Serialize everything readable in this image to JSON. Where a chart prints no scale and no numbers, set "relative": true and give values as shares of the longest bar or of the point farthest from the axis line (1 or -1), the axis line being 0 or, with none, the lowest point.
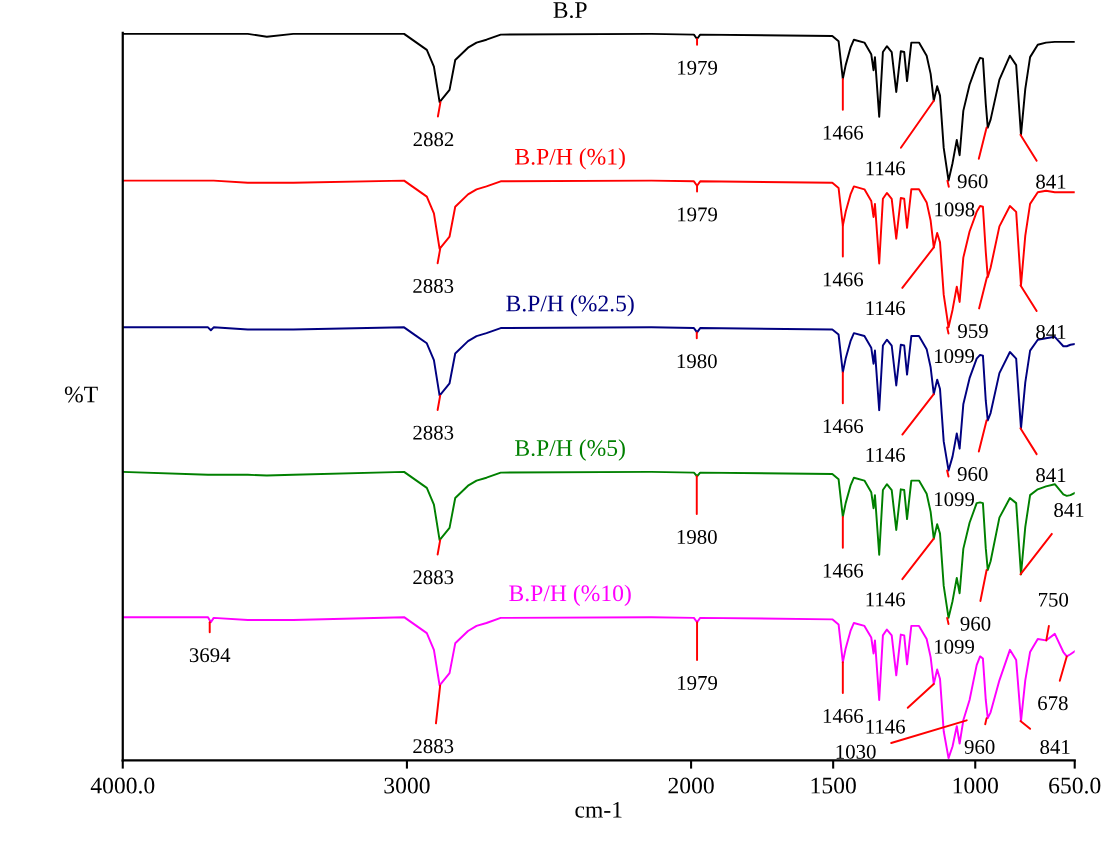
{
  "chart_data": {
    "type": "line",
    "relative": true,
    "xlabel": "cm-1",
    "ylabel": "%T",
    "xlim": [
      4000,
      650
    ],
    "xticks": [
      {
        "value": 4000,
        "label": "4000.0"
      },
      3000,
      2000,
      1500,
      1000,
      {
        "value": 650,
        "label": "650.0"
      }
    ],
    "x": [
      4000,
      3700,
      3690,
      3680,
      3560,
      3493,
      3400,
      3010,
      2970,
      2930,
      2905,
      2885,
      2850,
      2830,
      2785,
      2755,
      2720,
      2670,
      2140,
      1990,
      1979,
      1968,
      1503,
      1481,
      1466,
      1456,
      1439,
      1427,
      1390,
      1366,
      1358,
      1353,
      1338,
      1325,
      1311,
      1294,
      1278,
      1262,
      1250,
      1240,
      1225,
      1198,
      1171,
      1157,
      1146,
      1134,
      1124,
      1111,
      1094,
      1080,
      1065,
      1055,
      1042,
      1020,
      995,
      983,
      973,
      963,
      956,
      946,
      915,
      878,
      856,
      839,
      824,
      807,
      780,
      751,
      720,
      690,
      678,
      665,
      650
    ],
    "series": [
      {
        "name": "B.P",
        "color": "#000000",
        "values": [
          1.0,
          1.0,
          1.0,
          1.0,
          1.0,
          0.996,
          1.0,
          1.0,
          0.989,
          0.978,
          0.955,
          0.906,
          0.923,
          0.964,
          0.981,
          0.988,
          0.992,
          0.999,
          1.0,
          0.999,
          0.993,
          0.999,
          0.997,
          0.99,
          0.938,
          0.957,
          0.981,
          0.992,
          0.988,
          0.972,
          0.95,
          0.968,
          0.886,
          0.975,
          0.983,
          0.975,
          0.92,
          0.976,
          0.975,
          0.935,
          0.988,
          0.988,
          0.97,
          0.945,
          0.908,
          0.928,
          0.915,
          0.843,
          0.798,
          0.822,
          0.854,
          0.833,
          0.894,
          0.93,
          0.957,
          0.967,
          0.966,
          0.904,
          0.871,
          0.882,
          0.937,
          0.97,
          0.957,
          0.861,
          0.924,
          0.968,
          0.985,
          0.988,
          0.989,
          0.989,
          0.989,
          0.989,
          0.989
        ]
      },
      {
        "name": "B.P/H (%1)",
        "color": "#ff0000",
        "values": [
          0.798,
          0.798,
          0.798,
          0.798,
          0.795,
          0.795,
          0.795,
          0.798,
          0.787,
          0.776,
          0.753,
          0.704,
          0.721,
          0.762,
          0.779,
          0.786,
          0.79,
          0.797,
          0.798,
          0.797,
          0.791,
          0.797,
          0.795,
          0.788,
          0.736,
          0.755,
          0.779,
          0.79,
          0.786,
          0.77,
          0.748,
          0.766,
          0.684,
          0.773,
          0.781,
          0.773,
          0.718,
          0.774,
          0.773,
          0.733,
          0.786,
          0.786,
          0.768,
          0.743,
          0.706,
          0.726,
          0.713,
          0.641,
          0.596,
          0.62,
          0.652,
          0.631,
          0.692,
          0.728,
          0.755,
          0.763,
          0.762,
          0.7,
          0.665,
          0.678,
          0.735,
          0.763,
          0.755,
          0.654,
          0.722,
          0.766,
          0.782,
          0.784,
          0.782,
          0.782,
          0.782,
          0.782,
          0.782
        ]
      },
      {
        "name": "B.P/H (%2.5)",
        "color": "#000080",
        "values": [
          0.596,
          0.596,
          0.592,
          0.596,
          0.593,
          0.593,
          0.593,
          0.596,
          0.585,
          0.574,
          0.551,
          0.502,
          0.519,
          0.56,
          0.577,
          0.584,
          0.588,
          0.595,
          0.596,
          0.595,
          0.589,
          0.595,
          0.593,
          0.586,
          0.534,
          0.553,
          0.577,
          0.588,
          0.584,
          0.568,
          0.546,
          0.564,
          0.482,
          0.571,
          0.579,
          0.571,
          0.516,
          0.572,
          0.571,
          0.531,
          0.584,
          0.584,
          0.566,
          0.541,
          0.504,
          0.524,
          0.511,
          0.439,
          0.399,
          0.418,
          0.45,
          0.429,
          0.49,
          0.526,
          0.553,
          0.558,
          0.557,
          0.495,
          0.468,
          0.478,
          0.533,
          0.562,
          0.553,
          0.457,
          0.52,
          0.564,
          0.579,
          0.581,
          0.583,
          0.57,
          0.57,
          0.572,
          0.573
        ]
      },
      {
        "name": "B.P/H (%5)",
        "color": "#008000",
        "values": [
          0.397,
          0.393,
          0.393,
          0.393,
          0.393,
          0.392,
          0.393,
          0.397,
          0.386,
          0.375,
          0.352,
          0.303,
          0.32,
          0.361,
          0.378,
          0.385,
          0.389,
          0.396,
          0.397,
          0.396,
          0.391,
          0.396,
          0.394,
          0.387,
          0.335,
          0.354,
          0.378,
          0.389,
          0.385,
          0.369,
          0.347,
          0.365,
          0.283,
          0.372,
          0.38,
          0.372,
          0.317,
          0.373,
          0.372,
          0.332,
          0.385,
          0.385,
          0.367,
          0.342,
          0.305,
          0.325,
          0.312,
          0.24,
          0.196,
          0.219,
          0.251,
          0.23,
          0.291,
          0.327,
          0.354,
          0.355,
          0.354,
          0.292,
          0.262,
          0.274,
          0.334,
          0.361,
          0.354,
          0.256,
          0.321,
          0.365,
          0.373,
          0.377,
          0.38,
          0.366,
          0.364,
          0.365,
          0.368
        ]
      },
      {
        "name": "B.P/H (%10)",
        "color": "#ff00ff",
        "values": [
          0.197,
          0.197,
          0.19,
          0.196,
          0.193,
          0.193,
          0.193,
          0.197,
          0.186,
          0.175,
          0.152,
          0.103,
          0.12,
          0.161,
          0.178,
          0.185,
          0.189,
          0.196,
          0.197,
          0.196,
          0.19,
          0.196,
          0.194,
          0.187,
          0.135,
          0.154,
          0.178,
          0.189,
          0.185,
          0.169,
          0.147,
          0.165,
          0.083,
          0.172,
          0.18,
          0.172,
          0.117,
          0.173,
          0.172,
          0.132,
          0.185,
          0.185,
          0.167,
          0.142,
          0.105,
          0.125,
          0.112,
          0.04,
          0.003,
          0.019,
          0.047,
          0.023,
          0.055,
          0.083,
          0.131,
          0.143,
          0.14,
          0.083,
          0.058,
          0.066,
          0.11,
          0.152,
          0.138,
          0.054,
          0.11,
          0.149,
          0.167,
          0.165,
          0.174,
          0.149,
          0.143,
          0.146,
          0.15
        ]
      }
    ],
    "annotations": [
      {
        "text": "2882",
        "x": 2882,
        "y": 0.906
      },
      {
        "text": "1979",
        "x": 1979,
        "y": 0.993
      },
      {
        "text": "1466",
        "x": 1466,
        "y": 0.938
      },
      {
        "text": "1146",
        "x": 1146,
        "y": 0.908
      },
      {
        "text": "1098",
        "x": 1098,
        "y": 0.798
      },
      {
        "text": "960",
        "x": 960,
        "y": 0.871
      },
      {
        "text": "841",
        "x": 841,
        "y": 0.861
      },
      {
        "text": "2883",
        "x": 2883,
        "y": 0.704
      },
      {
        "text": "1979",
        "x": 1979,
        "y": 0.791
      },
      {
        "text": "1466",
        "x": 1466,
        "y": 0.736
      },
      {
        "text": "1146",
        "x": 1146,
        "y": 0.706
      },
      {
        "text": "1099",
        "x": 1099,
        "y": 0.596
      },
      {
        "text": "959",
        "x": 959,
        "y": 0.665
      },
      {
        "text": "841",
        "x": 841,
        "y": 0.654
      },
      {
        "text": "2883",
        "x": 2883,
        "y": 0.502
      },
      {
        "text": "1980",
        "x": 1980,
        "y": 0.589
      },
      {
        "text": "1466",
        "x": 1466,
        "y": 0.534
      },
      {
        "text": "1146",
        "x": 1146,
        "y": 0.504
      },
      {
        "text": "1099",
        "x": 1099,
        "y": 0.399
      },
      {
        "text": "960",
        "x": 960,
        "y": 0.468
      },
      {
        "text": "841",
        "x": 841,
        "y": 0.457
      },
      {
        "text": "2883",
        "x": 2883,
        "y": 0.303
      },
      {
        "text": "1980",
        "x": 1980,
        "y": 0.391
      },
      {
        "text": "1466",
        "x": 1466,
        "y": 0.335
      },
      {
        "text": "1146",
        "x": 1146,
        "y": 0.305
      },
      {
        "text": "1099",
        "x": 1099,
        "y": 0.196
      },
      {
        "text": "960",
        "x": 960,
        "y": 0.262
      },
      {
        "text": "841",
        "x": 841,
        "y": 0.256
      },
      {
        "text": "3694",
        "x": 3694,
        "y": 0.19
      },
      {
        "text": "2883",
        "x": 2883,
        "y": 0.103
      },
      {
        "text": "1979",
        "x": 1979,
        "y": 0.19
      },
      {
        "text": "1466",
        "x": 1466,
        "y": 0.135
      },
      {
        "text": "1146",
        "x": 1146,
        "y": 0.105
      },
      {
        "text": "1030",
        "x": 1030,
        "y": 0.055
      },
      {
        "text": "960",
        "x": 960,
        "y": 0.058
      },
      {
        "text": "841",
        "x": 841,
        "y": 0.054
      },
      {
        "text": "750",
        "x": 750,
        "y": 0.165
      },
      {
        "text": "678",
        "x": 678,
        "y": 0.143
      }
    ]
  }
}
